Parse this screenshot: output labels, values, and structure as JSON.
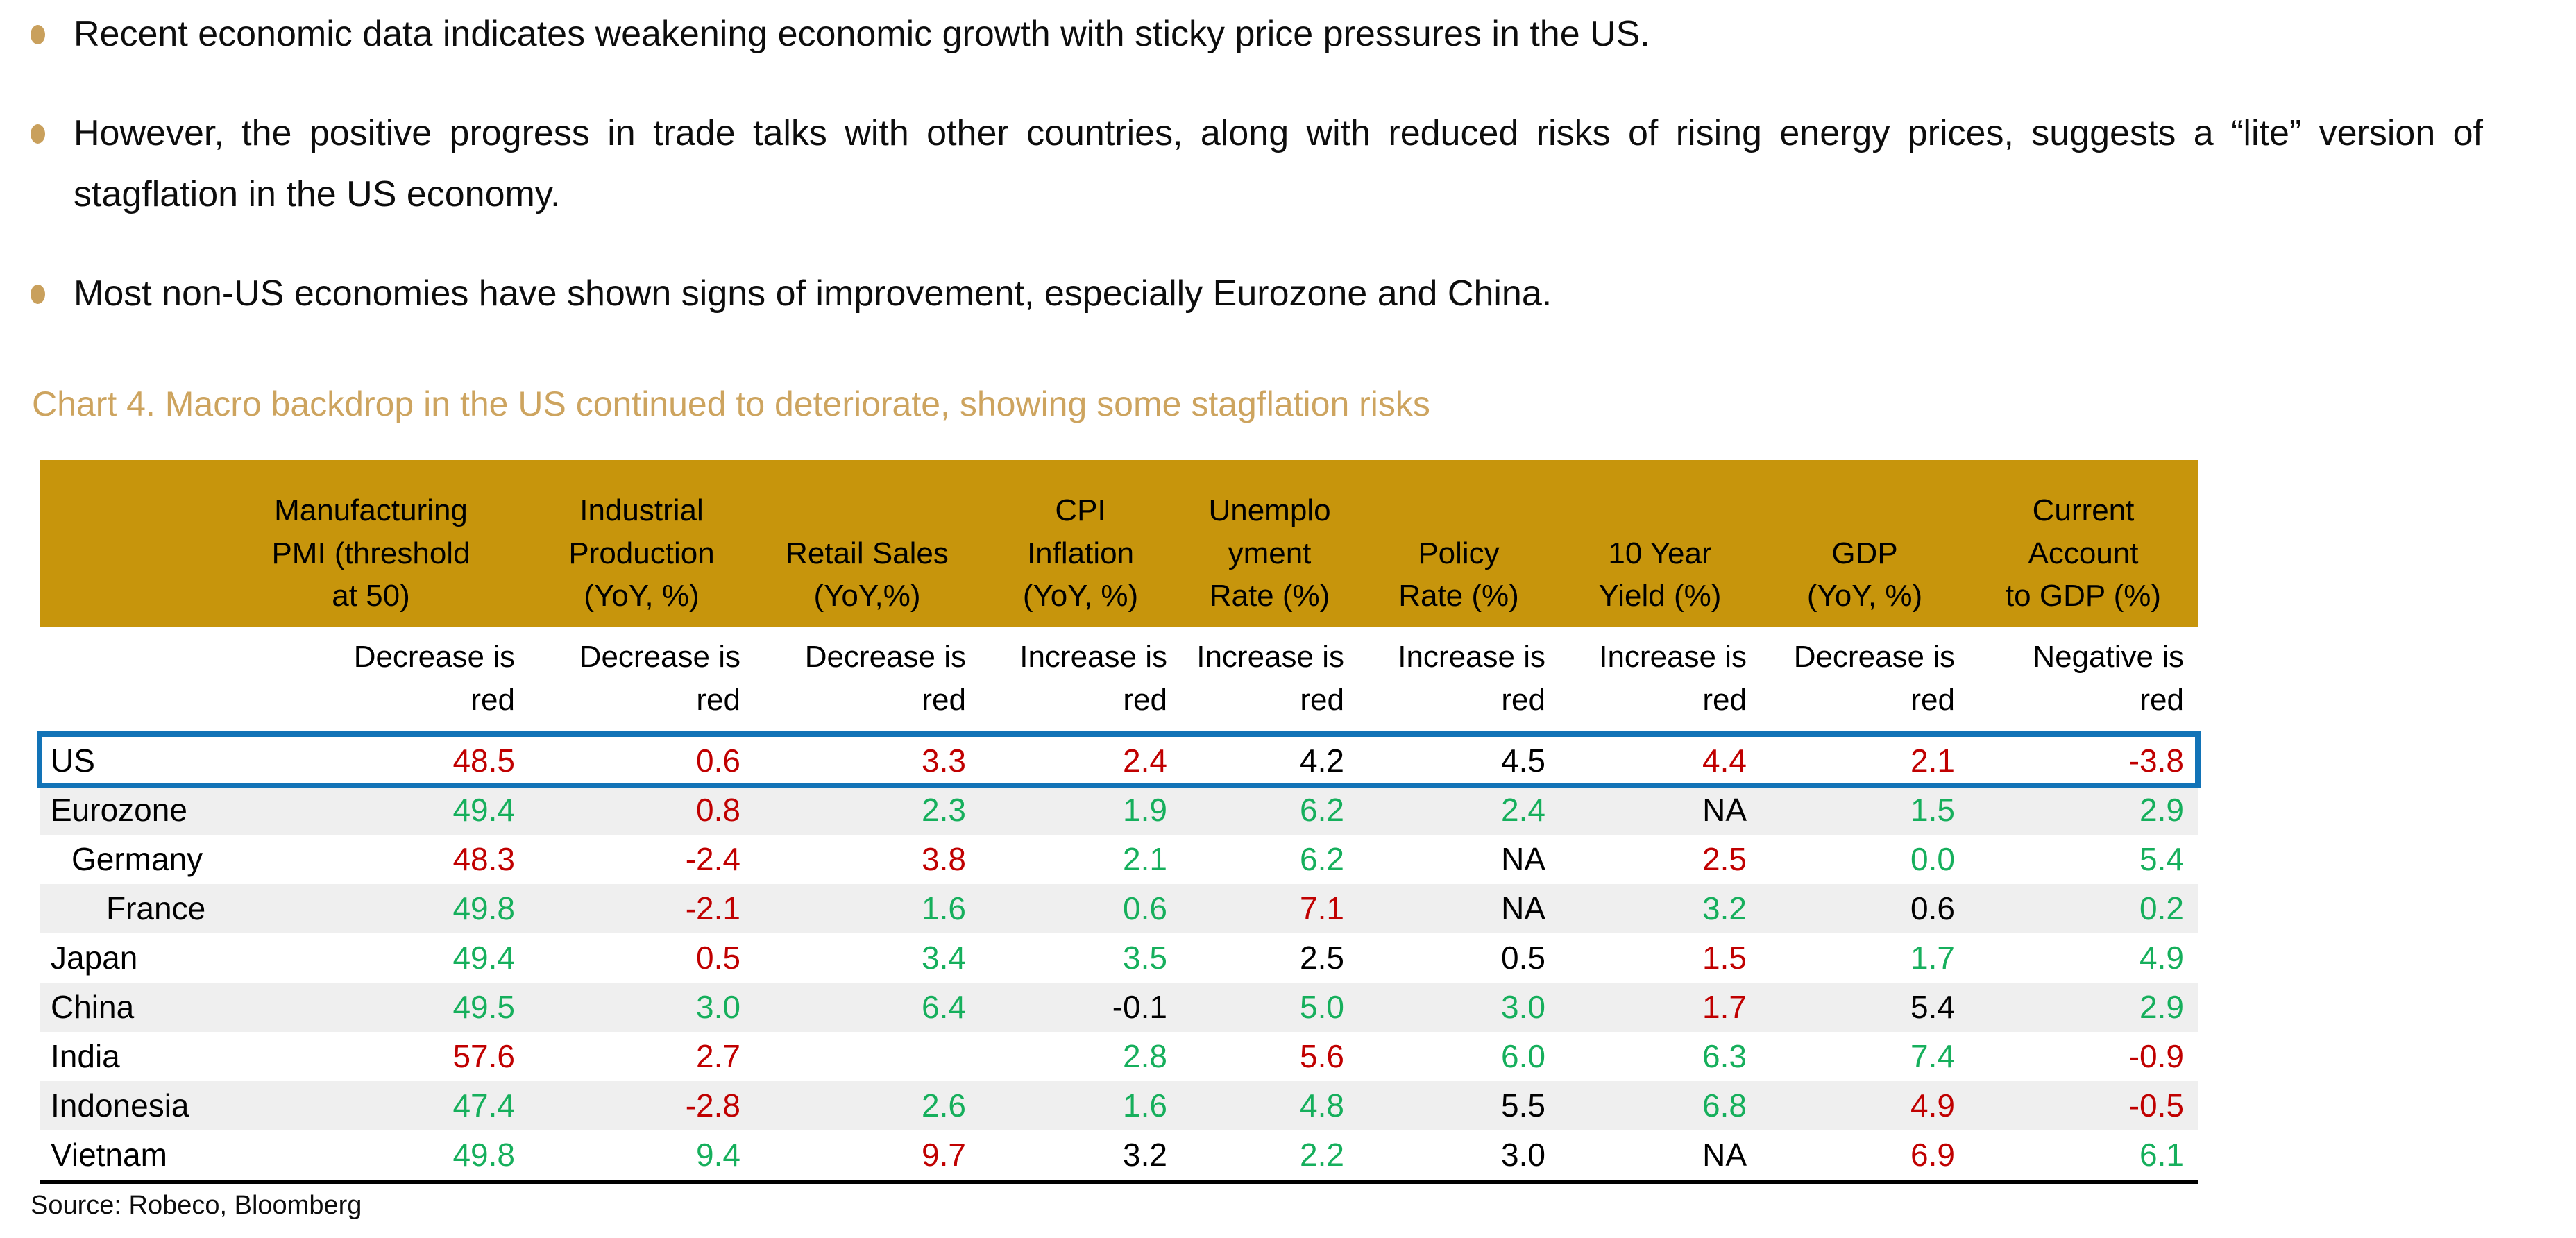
{
  "palette": {
    "header_gold": "#C7950C",
    "accent_tan": "#CDA45F",
    "bullet_tan": "#C9A05C",
    "negative_red": "#C00000",
    "positive_green": "#16AF5C",
    "highlight_blue": "#1273B7",
    "stripe_gray": "#EFEFEF"
  },
  "bullets": [
    "Recent economic data indicates weakening economic growth with sticky price pressures in the US.",
    "However, the positive progress in trade talks with other countries, along with reduced risks of rising energy prices, suggests a “lite” version of stagflation in the US economy.",
    "Most non-US economies have shown signs of improvement, especially Eurozone and China."
  ],
  "chart_title": "Chart 4. Macro backdrop in the US continued to deteriorate, showing some stagflation risks",
  "table": {
    "headers": [
      "",
      "Manufacturing\nPMI (threshold\nat 50)",
      "Industrial\nProduction\n(YoY, %)",
      "Retail Sales\n(YoY,%)",
      "CPI\nInflation\n(YoY, %)",
      "Unemplo\nyment\nRate (%)",
      "Policy\nRate (%)",
      "10 Year\nYield (%)",
      "GDP\n(YoY, %)",
      "Current\nAccount\nto GDP (%)"
    ],
    "subheaders": [
      "",
      "Decrease is\nred",
      "Decrease is\nred",
      "Decrease is\nred",
      "Increase is\nred",
      "Increase is\nred",
      "Increase is\nred",
      "Increase is\nred",
      "Decrease is\nred",
      "Negative is\nred"
    ],
    "column_keys": [
      "manufacturing_pmi",
      "industrial_production",
      "retail_sales",
      "cpi_inflation",
      "unemployment_rate",
      "policy_rate",
      "ten_year_yield",
      "gdp",
      "current_account"
    ],
    "rows": [
      {
        "name": "US",
        "indent": 0,
        "highlight": true,
        "values": [
          {
            "value": "48.5",
            "color": "red"
          },
          {
            "value": "0.6",
            "color": "red"
          },
          {
            "value": "3.3",
            "color": "red"
          },
          {
            "value": "2.4",
            "color": "red"
          },
          {
            "value": "4.2",
            "color": "black"
          },
          {
            "value": "4.5",
            "color": "black"
          },
          {
            "value": "4.4",
            "color": "red"
          },
          {
            "value": "2.1",
            "color": "red"
          },
          {
            "value": "-3.8",
            "color": "red"
          }
        ]
      },
      {
        "name": "Eurozone",
        "indent": 0,
        "highlight": false,
        "values": [
          {
            "value": "49.4",
            "color": "green"
          },
          {
            "value": "0.8",
            "color": "red"
          },
          {
            "value": "2.3",
            "color": "green"
          },
          {
            "value": "1.9",
            "color": "green"
          },
          {
            "value": "6.2",
            "color": "green"
          },
          {
            "value": "2.4",
            "color": "green"
          },
          {
            "value": "NA",
            "color": "black"
          },
          {
            "value": "1.5",
            "color": "green"
          },
          {
            "value": "2.9",
            "color": "green"
          }
        ]
      },
      {
        "name": "Germany",
        "indent": 1,
        "highlight": false,
        "values": [
          {
            "value": "48.3",
            "color": "red"
          },
          {
            "value": "-2.4",
            "color": "red"
          },
          {
            "value": "3.8",
            "color": "red"
          },
          {
            "value": "2.1",
            "color": "green"
          },
          {
            "value": "6.2",
            "color": "green"
          },
          {
            "value": "NA",
            "color": "black"
          },
          {
            "value": "2.5",
            "color": "red"
          },
          {
            "value": "0.0",
            "color": "green"
          },
          {
            "value": "5.4",
            "color": "green"
          }
        ]
      },
      {
        "name": "France",
        "indent": 2,
        "highlight": false,
        "values": [
          {
            "value": "49.8",
            "color": "green"
          },
          {
            "value": "-2.1",
            "color": "red"
          },
          {
            "value": "1.6",
            "color": "green"
          },
          {
            "value": "0.6",
            "color": "green"
          },
          {
            "value": "7.1",
            "color": "red"
          },
          {
            "value": "NA",
            "color": "black"
          },
          {
            "value": "3.2",
            "color": "green"
          },
          {
            "value": "0.6",
            "color": "black"
          },
          {
            "value": "0.2",
            "color": "green"
          }
        ]
      },
      {
        "name": "Japan",
        "indent": 0,
        "highlight": false,
        "values": [
          {
            "value": "49.4",
            "color": "green"
          },
          {
            "value": "0.5",
            "color": "red"
          },
          {
            "value": "3.4",
            "color": "green"
          },
          {
            "value": "3.5",
            "color": "green"
          },
          {
            "value": "2.5",
            "color": "black"
          },
          {
            "value": "0.5",
            "color": "black"
          },
          {
            "value": "1.5",
            "color": "red"
          },
          {
            "value": "1.7",
            "color": "green"
          },
          {
            "value": "4.9",
            "color": "green"
          }
        ]
      },
      {
        "name": "China",
        "indent": 0,
        "highlight": false,
        "values": [
          {
            "value": "49.5",
            "color": "green"
          },
          {
            "value": "3.0",
            "color": "green"
          },
          {
            "value": "6.4",
            "color": "green"
          },
          {
            "value": "-0.1",
            "color": "black"
          },
          {
            "value": "5.0",
            "color": "green"
          },
          {
            "value": "3.0",
            "color": "green"
          },
          {
            "value": "1.7",
            "color": "red"
          },
          {
            "value": "5.4",
            "color": "black"
          },
          {
            "value": "2.9",
            "color": "green"
          }
        ]
      },
      {
        "name": "India",
        "indent": 0,
        "highlight": false,
        "values": [
          {
            "value": "57.6",
            "color": "red"
          },
          {
            "value": "2.7",
            "color": "red"
          },
          {
            "value": "",
            "color": "black"
          },
          {
            "value": "2.8",
            "color": "green"
          },
          {
            "value": "5.6",
            "color": "red"
          },
          {
            "value": "6.0",
            "color": "green"
          },
          {
            "value": "6.3",
            "color": "green"
          },
          {
            "value": "7.4",
            "color": "green"
          },
          {
            "value": "-0.9",
            "color": "red"
          }
        ]
      },
      {
        "name": "Indonesia",
        "indent": 0,
        "highlight": false,
        "values": [
          {
            "value": "47.4",
            "color": "green"
          },
          {
            "value": "-2.8",
            "color": "red"
          },
          {
            "value": "2.6",
            "color": "green"
          },
          {
            "value": "1.6",
            "color": "green"
          },
          {
            "value": "4.8",
            "color": "green"
          },
          {
            "value": "5.5",
            "color": "black"
          },
          {
            "value": "6.8",
            "color": "green"
          },
          {
            "value": "4.9",
            "color": "red"
          },
          {
            "value": "-0.5",
            "color": "red"
          }
        ]
      },
      {
        "name": "Vietnam",
        "indent": 0,
        "highlight": false,
        "values": [
          {
            "value": "49.8",
            "color": "green"
          },
          {
            "value": "9.4",
            "color": "green"
          },
          {
            "value": "9.7",
            "color": "red"
          },
          {
            "value": "3.2",
            "color": "black"
          },
          {
            "value": "2.2",
            "color": "green"
          },
          {
            "value": "3.0",
            "color": "black"
          },
          {
            "value": "NA",
            "color": "black"
          },
          {
            "value": "6.9",
            "color": "red"
          },
          {
            "value": "6.1",
            "color": "green"
          }
        ]
      }
    ]
  },
  "source": "Source: Robeco, Bloomberg"
}
